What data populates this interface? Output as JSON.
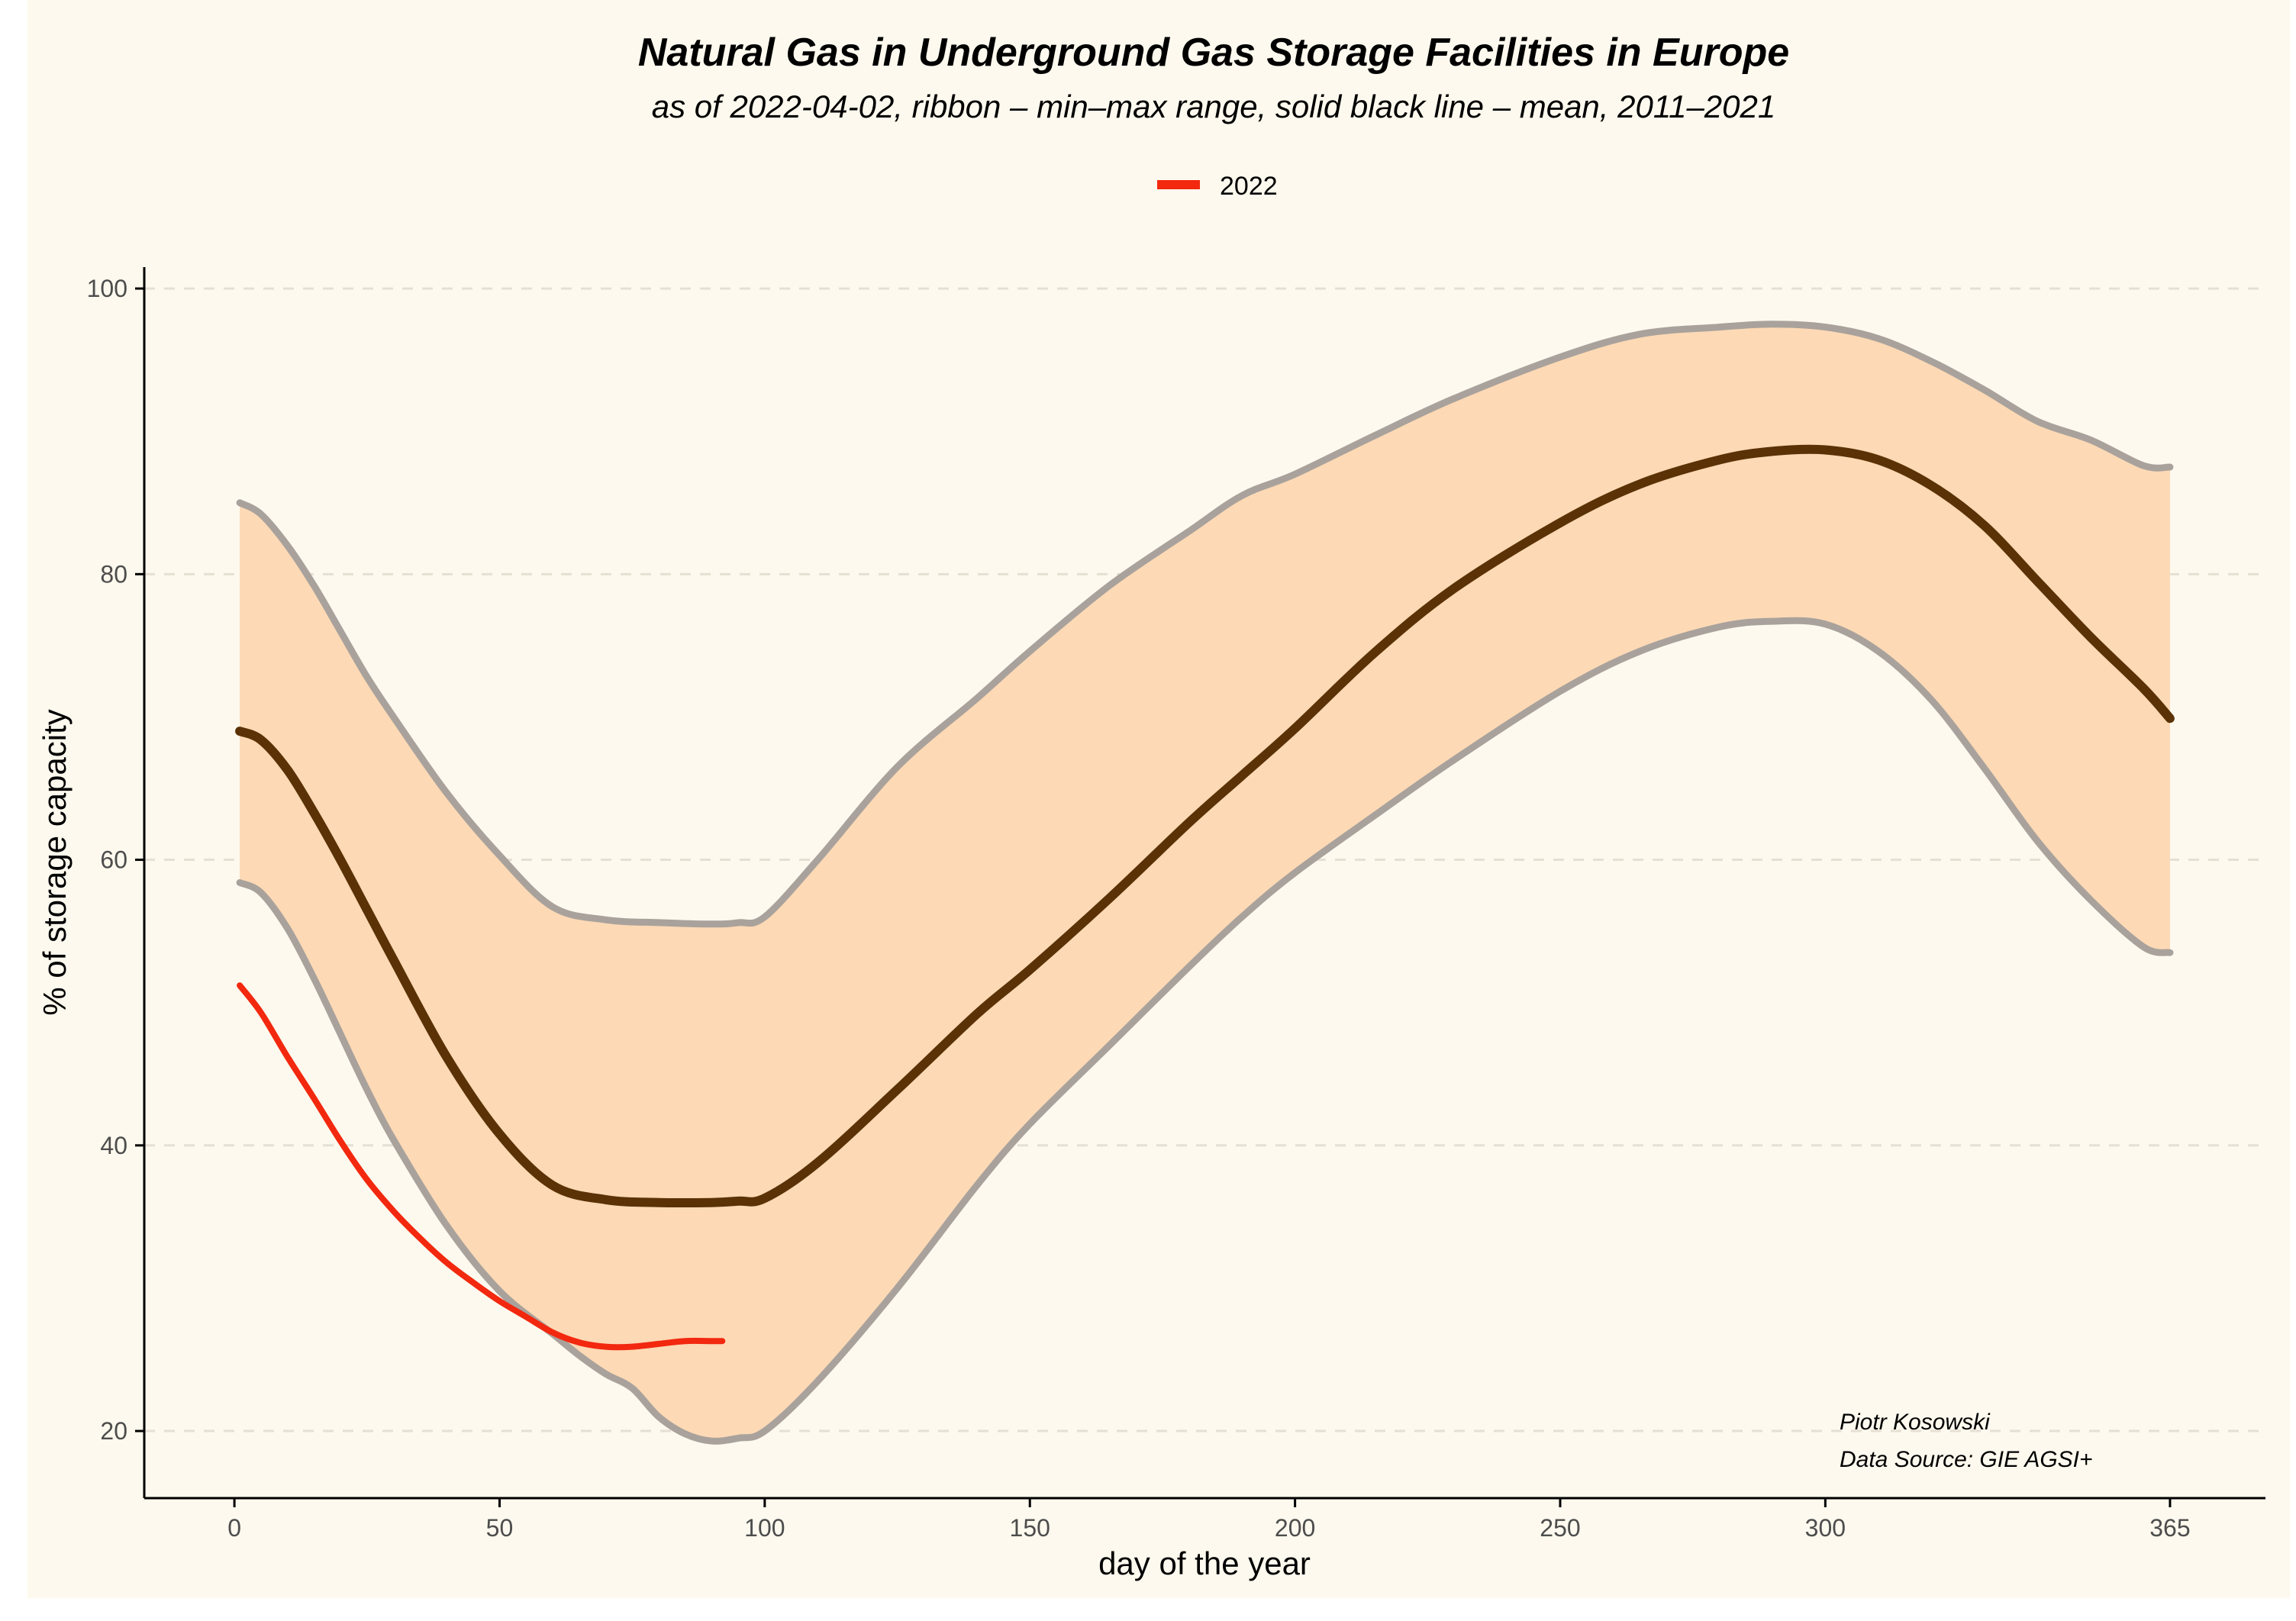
{
  "chart_data": {
    "type": "line",
    "title": "Natural Gas in Underground Gas Storage Facilities in Europe",
    "subtitle": "as of 2022-04-02, ribbon – min–max range, solid black line – mean, 2011–2021",
    "xlabel": "day of the year",
    "ylabel": "% of storage capacity",
    "xlim": [
      -17,
      383
    ],
    "ylim": [
      15.3,
      101.5
    ],
    "x_ticks": [
      0,
      50,
      100,
      150,
      200,
      250,
      300,
      365
    ],
    "y_ticks": [
      20,
      40,
      60,
      80,
      100
    ],
    "grid": "horizontal dashed",
    "legend": {
      "position": "top",
      "entries": [
        {
          "name": "2022",
          "color": "#f2280f"
        }
      ]
    },
    "caption": [
      "Piotr Kosowski",
      "Data Source: GIE AGSI+"
    ],
    "colors": {
      "ribbon_fill": "#fdd9b5",
      "ribbon_edge": "#a9a29c",
      "mean": "#5a3206",
      "series_2022": "#f2280f",
      "background": "#fdf9ee",
      "grid": "#e6e0d4"
    },
    "series": [
      {
        "name": "max",
        "role": "ribbon-upper",
        "x": [
          1,
          5,
          10,
          15,
          20,
          25,
          30,
          40,
          50,
          60,
          70,
          80,
          90,
          95,
          100,
          110,
          125,
          140,
          150,
          165,
          180,
          190,
          200,
          215,
          230,
          250,
          265,
          280,
          290,
          300,
          310,
          320,
          330,
          340,
          350,
          360,
          365
        ],
        "y": [
          85,
          84.2,
          82,
          79.2,
          76,
          72.8,
          70,
          64.7,
          60.3,
          56.7,
          55.8,
          55.6,
          55.5,
          55.6,
          56,
          60,
          66.5,
          71.3,
          74.6,
          79.2,
          83,
          85.5,
          87,
          89.7,
          92.3,
          95.2,
          96.8,
          97.3,
          97.5,
          97.3,
          96.5,
          94.9,
          92.9,
          90.7,
          89.4,
          87.6,
          87.5
        ]
      },
      {
        "name": "mean",
        "role": "mean",
        "x": [
          1,
          5,
          10,
          15,
          20,
          25,
          30,
          40,
          50,
          60,
          70,
          80,
          90,
          95,
          100,
          110,
          125,
          140,
          150,
          165,
          180,
          190,
          200,
          215,
          230,
          250,
          265,
          280,
          290,
          300,
          310,
          320,
          330,
          340,
          350,
          360,
          365
        ],
        "y": [
          69,
          68.4,
          66.3,
          63.3,
          60,
          56.5,
          53,
          46.2,
          40.8,
          37.2,
          36.2,
          36,
          36,
          36.1,
          36.3,
          38.8,
          43.9,
          49.2,
          52.3,
          57.3,
          62.6,
          65.9,
          69.2,
          74.5,
          79,
          83.6,
          86.3,
          88,
          88.6,
          88.7,
          88,
          86.2,
          83.4,
          79.5,
          75.6,
          72,
          69.9
        ]
      },
      {
        "name": "min",
        "role": "ribbon-lower",
        "x": [
          1,
          5,
          10,
          15,
          20,
          25,
          30,
          40,
          50,
          60,
          65,
          70,
          75,
          80,
          85,
          90,
          95,
          100,
          110,
          125,
          140,
          150,
          165,
          180,
          190,
          200,
          215,
          230,
          250,
          265,
          280,
          290,
          300,
          310,
          320,
          330,
          340,
          350,
          360,
          365
        ],
        "y": [
          58.4,
          57.7,
          55.2,
          51.7,
          47.8,
          43.9,
          40.4,
          34.4,
          29.8,
          26.8,
          25.3,
          24,
          23,
          21,
          19.8,
          19.3,
          19.5,
          20,
          23.5,
          30,
          37.2,
          41.5,
          47,
          52.5,
          56,
          59.1,
          63.1,
          67,
          71.8,
          74.6,
          76.3,
          76.7,
          76.5,
          74.6,
          71.2,
          66.4,
          61.3,
          57.2,
          53.9,
          53.5
        ]
      },
      {
        "name": "2022",
        "role": "current-year",
        "x": [
          1,
          5,
          10,
          15,
          20,
          25,
          30,
          35,
          40,
          45,
          50,
          55,
          60,
          65,
          70,
          75,
          80,
          85,
          90,
          92
        ],
        "y": [
          51.2,
          49.3,
          46.2,
          43.3,
          40.3,
          37.6,
          35.4,
          33.5,
          31.8,
          30.4,
          29.1,
          28,
          26.9,
          26.2,
          25.9,
          25.9,
          26.1,
          26.3,
          26.3,
          26.3
        ]
      }
    ]
  }
}
